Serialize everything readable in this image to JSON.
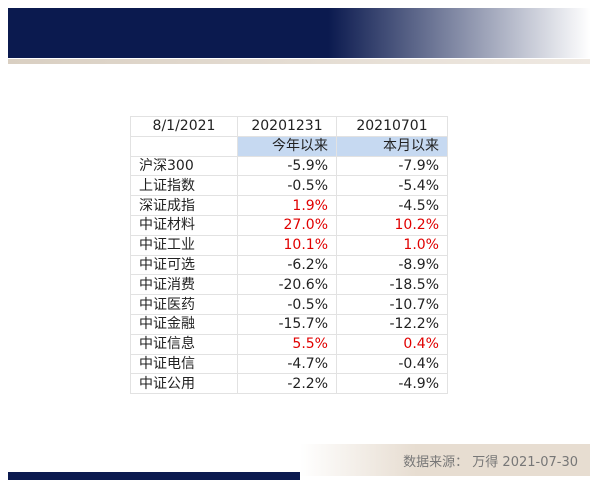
{
  "table": {
    "header": [
      "8/1/2021",
      "20201231",
      "20210701"
    ],
    "subheader": [
      "今年以来",
      "本月以来"
    ],
    "rows": [
      [
        "沪深300",
        "-5.9%",
        "-7.9%"
      ],
      [
        "上证指数",
        "-0.5%",
        "-5.4%"
      ],
      [
        "深证成指",
        "1.9%",
        "-4.5%"
      ],
      [
        "中证材料",
        "27.0%",
        "10.2%"
      ],
      [
        "中证工业",
        "10.1%",
        "1.0%"
      ],
      [
        "中证可选",
        "-6.2%",
        "-8.9%"
      ],
      [
        "中证消费",
        "-20.6%",
        "-18.5%"
      ],
      [
        "中证医药",
        "-0.5%",
        "-10.7%"
      ],
      [
        "中证金融",
        "-15.7%",
        "-12.2%"
      ],
      [
        "中证信息",
        "5.5%",
        "0.4%"
      ],
      [
        "中证电信",
        "-4.7%",
        "-0.4%"
      ],
      [
        "中证公用",
        "-2.2%",
        "-4.9%"
      ]
    ],
    "positive_color": "#e00000",
    "negative_color": "#222222"
  },
  "footer": {
    "source": "数据来源：  万得 2021-07-30"
  }
}
